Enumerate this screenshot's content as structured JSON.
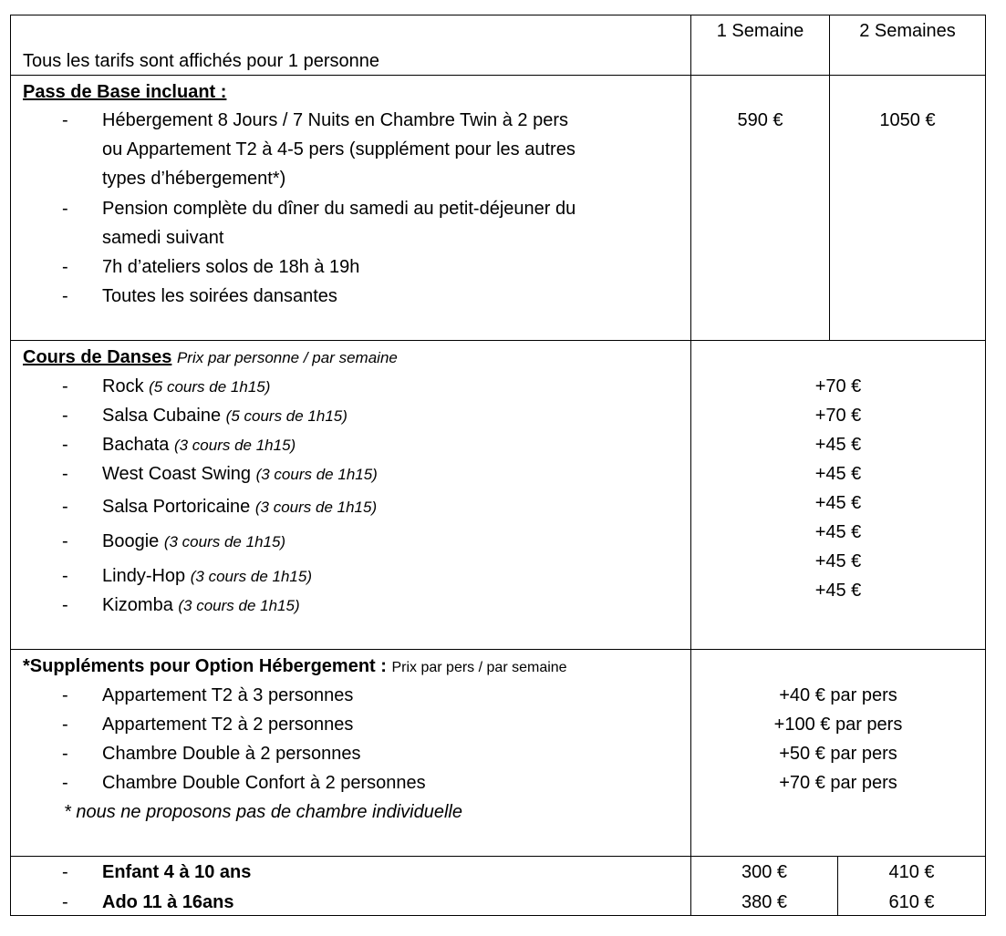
{
  "header": {
    "note": "Tous les tarifs sont affichés pour 1 personne",
    "col1": "1 Semaine",
    "col2": "2 Semaines"
  },
  "pass": {
    "title": "Pass de Base incluant :",
    "lines": [
      "Hébergement 8 Jours / 7 Nuits en Chambre Twin à 2 pers",
      "ou Appartement T2 à 4-5 pers (supplément pour les autres",
      "types d’hébergement*)",
      "Pension complète du dîner du samedi au petit-déjeuner du",
      "samedi suivant",
      "7h d’ateliers solos de 18h à 19h",
      "Toutes les soirées dansantes"
    ],
    "price_1w": "590 €",
    "price_2w": "1050 €"
  },
  "courses": {
    "title": "Cours de Danses",
    "subtitle": "Prix par personne / par semaine",
    "items": [
      {
        "name": "Rock",
        "detail": "(5 cours de 1h15)",
        "price": "+70 €"
      },
      {
        "name": "Salsa Cubaine",
        "detail": "(5 cours de 1h15)",
        "price": "+70 €"
      },
      {
        "name": "Bachata",
        "detail": "(3 cours de 1h15)",
        "price": "+45 €"
      },
      {
        "name": "West Coast Swing",
        "detail": "(3 cours de 1h15)",
        "price": "+45 €"
      },
      {
        "name": "Salsa Portoricaine",
        "detail": "(3 cours de 1h15)",
        "price": "+45 €"
      },
      {
        "name": "Boogie",
        "detail": "(3 cours de 1h15)",
        "price": "+45 €"
      },
      {
        "name": "Lindy-Hop",
        "detail": "(3 cours de 1h15)",
        "price": "+45 €"
      },
      {
        "name": "Kizomba",
        "detail": "(3 cours de 1h15)",
        "price": "+45 €"
      }
    ]
  },
  "supplements": {
    "title": "*Suppléments pour Option Hébergement :",
    "subtitle": "Prix par pers / par semaine",
    "items": [
      {
        "name": "Appartement T2 à 3 personnes",
        "price": "+40 € par pers"
      },
      {
        "name": "Appartement T2 à 2 personnes",
        "price": "+100 € par pers"
      },
      {
        "name": "Chambre Double à 2 personnes",
        "price": "+50 € par pers"
      },
      {
        "name": "Chambre Double Confort à 2 personnes",
        "price": "+70 € par pers"
      }
    ],
    "note": "* nous ne proposons pas de chambre individuelle"
  },
  "youth": [
    {
      "label": "Enfant 4 à 10 ans",
      "price_1w": "300 €",
      "price_2w": "410 €"
    },
    {
      "label": "Ado 11 à 16ans",
      "price_1w": "380 €",
      "price_2w": "610 €"
    }
  ],
  "bullet": "-"
}
